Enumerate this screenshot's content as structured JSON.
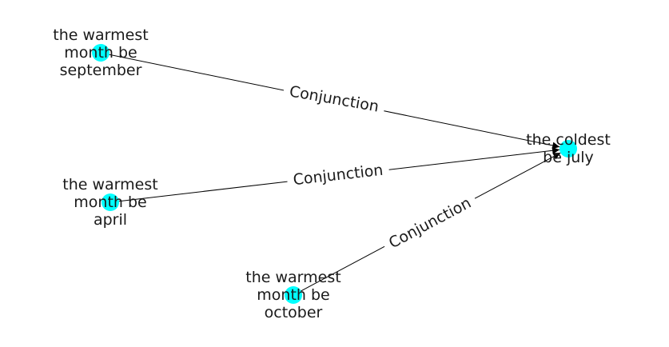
{
  "graph": {
    "node_color": "#00FFFF",
    "edge_color": "#000000",
    "nodes": [
      {
        "id": "n1",
        "label_lines": [
          "the warmest",
          "month be",
          "september"
        ]
      },
      {
        "id": "n2",
        "label_lines": [
          "the warmest",
          "month be",
          "april"
        ]
      },
      {
        "id": "n3",
        "label_lines": [
          "the warmest",
          "month be",
          "october"
        ]
      },
      {
        "id": "n4",
        "label_lines": [
          "the coldest",
          "be july"
        ]
      }
    ],
    "edges": [
      {
        "source": "n1",
        "target": "n4",
        "label": "Conjunction"
      },
      {
        "source": "n2",
        "target": "n4",
        "label": "Conjunction"
      },
      {
        "source": "n3",
        "target": "n4",
        "label": "Conjunction"
      }
    ]
  }
}
